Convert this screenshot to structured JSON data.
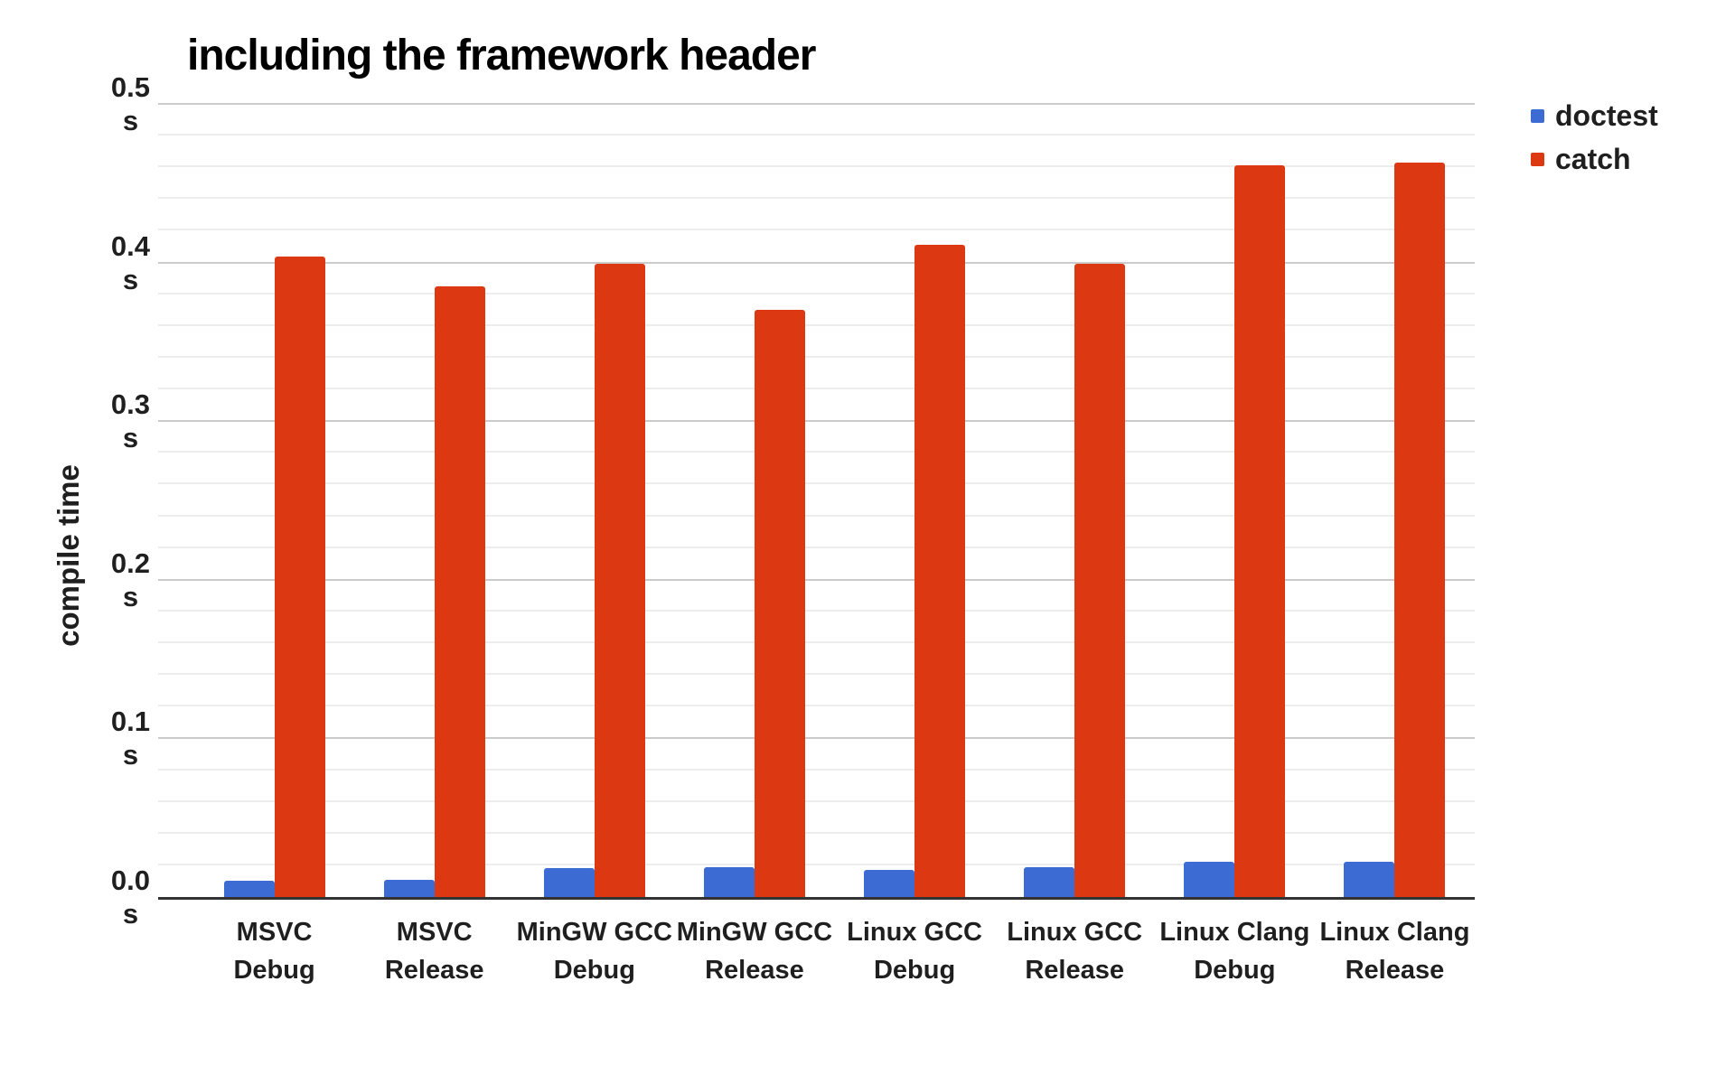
{
  "chart_data": {
    "type": "bar",
    "title": "including the framework header",
    "ylabel": "compile time",
    "xlabel": "",
    "tick_unit": "s",
    "categories": [
      "MSVC\nDebug",
      "MSVC\nRelease",
      "MinGW GCC\nDebug",
      "MinGW GCC\nRelease",
      "Linux GCC\nDebug",
      "Linux GCC\nRelease",
      "Linux Clang\nDebug",
      "Linux Clang\nRelease"
    ],
    "series": [
      {
        "name": "doctest",
        "color": "#3B6BD3",
        "values": [
          0.01,
          0.011,
          0.018,
          0.019,
          0.017,
          0.019,
          0.022,
          0.022
        ]
      },
      {
        "name": "catch",
        "color": "#DC3912",
        "values": [
          0.404,
          0.385,
          0.399,
          0.37,
          0.411,
          0.399,
          0.461,
          0.463
        ]
      }
    ],
    "ylim": [
      0,
      0.5
    ],
    "yticks": [
      0.0,
      0.1,
      0.2,
      0.3,
      0.4,
      0.5
    ],
    "minor_tick_interval": 0.02,
    "grid": true,
    "legend_position": "top-right",
    "colors": {
      "major_gridline": "#cbcbcb",
      "minor_gridline": "#ededed",
      "axis_line": "#333333",
      "text": "#1f1f1f",
      "title_text": "#000000"
    }
  }
}
